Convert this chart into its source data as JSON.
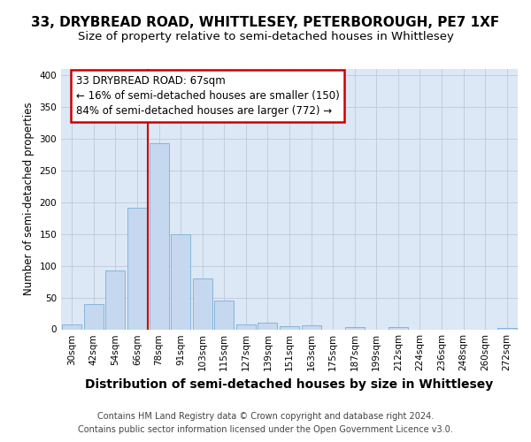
{
  "title1": "33, DRYBREAD ROAD, WHITTLESEY, PETERBOROUGH, PE7 1XF",
  "title2": "Size of property relative to semi-detached houses in Whittlesey",
  "xlabel": "Distribution of semi-detached houses by size in Whittlesey",
  "ylabel": "Number of semi-detached properties",
  "categories": [
    "30sqm",
    "42sqm",
    "54sqm",
    "66sqm",
    "78sqm",
    "91sqm",
    "103sqm",
    "115sqm",
    "127sqm",
    "139sqm",
    "151sqm",
    "163sqm",
    "175sqm",
    "187sqm",
    "199sqm",
    "212sqm",
    "224sqm",
    "236sqm",
    "248sqm",
    "260sqm",
    "272sqm"
  ],
  "values": [
    7,
    39,
    93,
    191,
    293,
    150,
    80,
    45,
    8,
    11,
    5,
    6,
    0,
    4,
    0,
    3,
    0,
    0,
    0,
    0,
    2
  ],
  "bar_color": "#c5d8f0",
  "bar_edge_color": "#7bafd4",
  "vline_pos": 3.5,
  "vline_color": "#cc0000",
  "annotation_line1": "33 DRYBREAD ROAD: 67sqm",
  "annotation_line2": "← 16% of semi-detached houses are smaller (150)",
  "annotation_line3": "84% of semi-detached houses are larger (772) →",
  "footer1": "Contains HM Land Registry data © Crown copyright and database right 2024.",
  "footer2": "Contains public sector information licensed under the Open Government Licence v3.0.",
  "ylim": [
    0,
    410
  ],
  "bg_color": "#dce8f5",
  "fig_bg": "#ffffff",
  "title1_fontsize": 11,
  "title2_fontsize": 9.5,
  "xlabel_fontsize": 10,
  "ylabel_fontsize": 8.5,
  "tick_fontsize": 7.5,
  "footer_fontsize": 7,
  "annot_fontsize": 8.5
}
